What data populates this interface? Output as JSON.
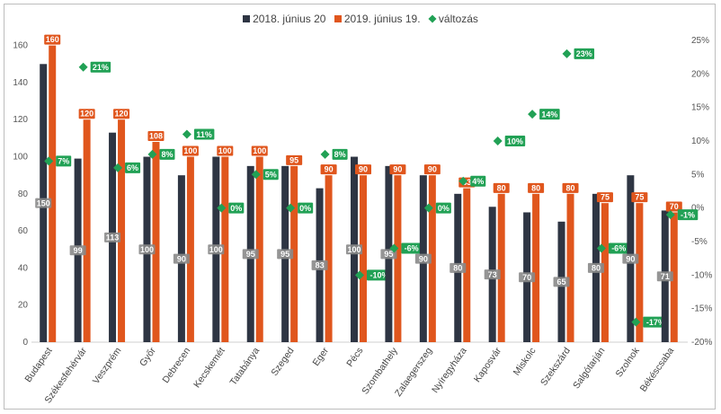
{
  "chart_data": {
    "type": "bar",
    "legend": {
      "placement": "top",
      "entries": [
        {
          "label": "2018. június 20",
          "color": "#2e3543"
        },
        {
          "label": "2019. június 19.",
          "color": "#e0561d"
        },
        {
          "label": "változás",
          "color": "#21a155"
        }
      ]
    },
    "categories": [
      "Budapest",
      "Székesfehérvár",
      "Veszprém",
      "Győr",
      "Debrecen",
      "Kecskemét",
      "Tatabánya",
      "Szeged",
      "Eger",
      "Pécs",
      "Szombathely",
      "Zalaegerszeg",
      "Nyíregyháza",
      "Kaposvár",
      "Miskolc",
      "Szekszárd",
      "Salgótarján",
      "Szolnok",
      "Békéscsaba"
    ],
    "series": [
      {
        "name": "2018. június 20",
        "axis": "left",
        "color": "#2e3543",
        "values": [
          150,
          99,
          113,
          100,
          90,
          100,
          95,
          95,
          83,
          100,
          95,
          90,
          80,
          73,
          70,
          65,
          80,
          90,
          71
        ],
        "labels": [
          "150",
          "99",
          "113",
          "100",
          "90",
          "100",
          "95",
          "95",
          "83",
          "100",
          "95",
          "90",
          "80",
          "73",
          "70",
          "65",
          "80",
          "90",
          "71"
        ]
      },
      {
        "name": "2019. június 19.",
        "axis": "left",
        "color": "#e0561d",
        "values": [
          160,
          120,
          120,
          108,
          100,
          100,
          100,
          95,
          90,
          90,
          90,
          90,
          83,
          80,
          80,
          80,
          75,
          75,
          70
        ],
        "labels": [
          "160",
          "120",
          "120",
          "108",
          "100",
          "100",
          "100",
          "95",
          "90",
          "90",
          "90",
          "90",
          "83",
          "80",
          "80",
          "80",
          "75",
          "75",
          "70"
        ]
      },
      {
        "name": "változás",
        "axis": "right",
        "marker": "diamond",
        "color": "#21a155",
        "values": [
          7,
          21,
          6,
          8,
          11,
          0,
          5,
          0,
          8,
          -10,
          -6,
          0,
          4,
          10,
          14,
          23,
          -6,
          -17,
          -1
        ],
        "labels": [
          "7%",
          "21%",
          "6%",
          "8%",
          "11%",
          "0%",
          "5%",
          "0%",
          "8%",
          "-10%",
          "-6%",
          "0%",
          "4%",
          "10%",
          "14%",
          "23%",
          "-6%",
          "-17%",
          "-1%"
        ]
      }
    ],
    "y_left": {
      "min": 0,
      "max": 170,
      "ticks": [
        0,
        20,
        40,
        60,
        80,
        100,
        120,
        140,
        160
      ]
    },
    "y_right": {
      "min": -20,
      "max": 27,
      "ticks": [
        -20,
        -15,
        -10,
        -5,
        0,
        5,
        10,
        15,
        20,
        25
      ],
      "tick_labels": [
        "-20%",
        "-15%",
        "-10%",
        "-5%",
        "0%",
        "5%",
        "10%",
        "15%",
        "20%",
        "25%"
      ]
    },
    "grid": false
  }
}
